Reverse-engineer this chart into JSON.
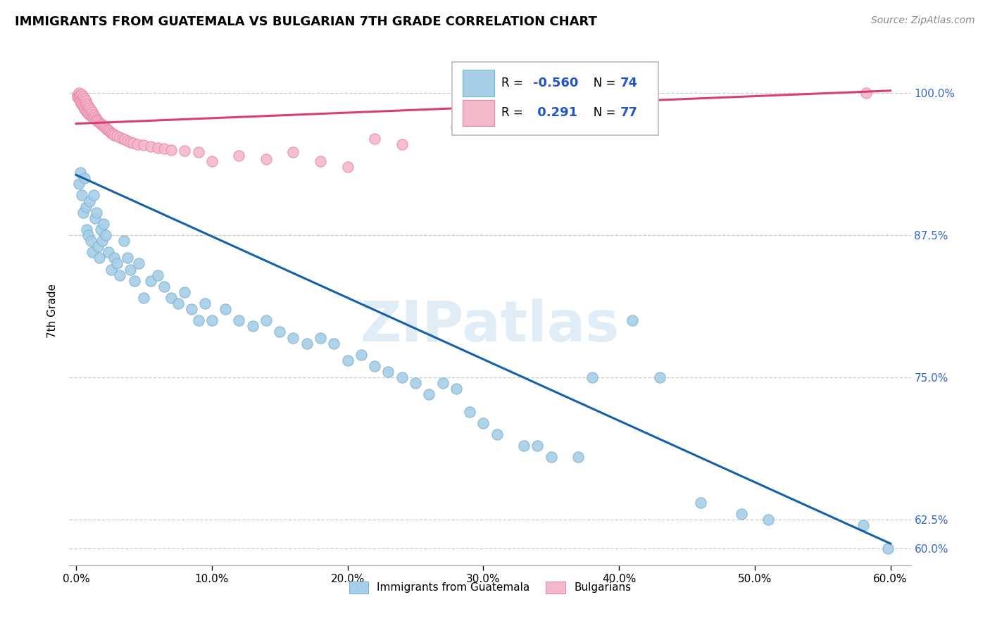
{
  "title": "IMMIGRANTS FROM GUATEMALA VS BULGARIAN 7TH GRADE CORRELATION CHART",
  "source": "Source: ZipAtlas.com",
  "ylabel": "7th Grade",
  "ytick_labels": [
    "60.0%",
    "62.5%",
    "75.0%",
    "87.5%",
    "100.0%"
  ],
  "ytick_values": [
    0.6,
    0.625,
    0.75,
    0.875,
    1.0
  ],
  "xtick_values": [
    0.0,
    0.1,
    0.2,
    0.3,
    0.4,
    0.5,
    0.6
  ],
  "blue_R": -0.56,
  "blue_N": 74,
  "pink_R": 0.291,
  "pink_N": 77,
  "blue_color": "#a8cfe8",
  "blue_edge_color": "#7ab3d4",
  "pink_color": "#f4b8cb",
  "pink_edge_color": "#e88aab",
  "blue_line_color": "#1460aa",
  "pink_line_color": "#d94070",
  "watermark": "ZIPatlas",
  "blue_line_x0": 0.0,
  "blue_line_y0": 0.928,
  "blue_line_x1": 0.6,
  "blue_line_y1": 0.604,
  "pink_line_x0": 0.0,
  "pink_line_y0": 0.973,
  "pink_line_x1": 0.6,
  "pink_line_y1": 1.002,
  "blue_scatter_x": [
    0.002,
    0.003,
    0.004,
    0.005,
    0.006,
    0.007,
    0.008,
    0.009,
    0.01,
    0.011,
    0.012,
    0.013,
    0.014,
    0.015,
    0.016,
    0.017,
    0.018,
    0.019,
    0.02,
    0.022,
    0.024,
    0.026,
    0.028,
    0.03,
    0.032,
    0.035,
    0.038,
    0.04,
    0.043,
    0.046,
    0.05,
    0.055,
    0.06,
    0.065,
    0.07,
    0.075,
    0.08,
    0.085,
    0.09,
    0.095,
    0.1,
    0.11,
    0.12,
    0.13,
    0.14,
    0.15,
    0.16,
    0.17,
    0.18,
    0.19,
    0.2,
    0.21,
    0.22,
    0.23,
    0.24,
    0.25,
    0.26,
    0.27,
    0.28,
    0.29,
    0.3,
    0.31,
    0.33,
    0.34,
    0.35,
    0.37,
    0.38,
    0.41,
    0.43,
    0.46,
    0.49,
    0.51,
    0.58,
    0.598
  ],
  "blue_scatter_y": [
    0.92,
    0.93,
    0.91,
    0.895,
    0.925,
    0.9,
    0.88,
    0.875,
    0.905,
    0.87,
    0.86,
    0.91,
    0.89,
    0.895,
    0.865,
    0.855,
    0.88,
    0.87,
    0.885,
    0.875,
    0.86,
    0.845,
    0.855,
    0.85,
    0.84,
    0.87,
    0.855,
    0.845,
    0.835,
    0.85,
    0.82,
    0.835,
    0.84,
    0.83,
    0.82,
    0.815,
    0.825,
    0.81,
    0.8,
    0.815,
    0.8,
    0.81,
    0.8,
    0.795,
    0.8,
    0.79,
    0.785,
    0.78,
    0.785,
    0.78,
    0.765,
    0.77,
    0.76,
    0.755,
    0.75,
    0.745,
    0.735,
    0.745,
    0.74,
    0.72,
    0.71,
    0.7,
    0.69,
    0.69,
    0.68,
    0.68,
    0.75,
    0.8,
    0.75,
    0.64,
    0.63,
    0.625,
    0.62,
    0.6
  ],
  "pink_scatter_x": [
    0.001,
    0.001,
    0.002,
    0.002,
    0.002,
    0.003,
    0.003,
    0.003,
    0.003,
    0.004,
    0.004,
    0.004,
    0.005,
    0.005,
    0.005,
    0.006,
    0.006,
    0.006,
    0.007,
    0.007,
    0.008,
    0.008,
    0.008,
    0.009,
    0.009,
    0.01,
    0.01,
    0.011,
    0.011,
    0.012,
    0.012,
    0.013,
    0.013,
    0.014,
    0.015,
    0.015,
    0.016,
    0.017,
    0.018,
    0.019,
    0.02,
    0.021,
    0.022,
    0.023,
    0.024,
    0.025,
    0.026,
    0.027,
    0.028,
    0.03,
    0.032,
    0.034,
    0.036,
    0.038,
    0.04,
    0.042,
    0.045,
    0.05,
    0.055,
    0.06,
    0.065,
    0.07,
    0.08,
    0.09,
    0.1,
    0.12,
    0.14,
    0.16,
    0.18,
    0.2,
    0.22,
    0.24,
    0.28,
    0.3,
    0.34,
    0.38,
    0.582
  ],
  "pink_scatter_y": [
    0.998,
    0.996,
    1.0,
    0.997,
    0.995,
    0.998,
    0.994,
    0.993,
    0.992,
    0.999,
    0.991,
    0.99,
    0.997,
    0.989,
    0.988,
    0.995,
    0.987,
    0.986,
    0.993,
    0.985,
    0.991,
    0.984,
    0.983,
    0.989,
    0.982,
    0.987,
    0.981,
    0.985,
    0.98,
    0.983,
    0.979,
    0.981,
    0.978,
    0.979,
    0.977,
    0.976,
    0.975,
    0.974,
    0.973,
    0.972,
    0.971,
    0.97,
    0.969,
    0.968,
    0.967,
    0.966,
    0.965,
    0.964,
    0.963,
    0.962,
    0.961,
    0.96,
    0.959,
    0.958,
    0.957,
    0.956,
    0.955,
    0.954,
    0.953,
    0.952,
    0.951,
    0.95,
    0.949,
    0.948,
    0.94,
    0.945,
    0.942,
    0.948,
    0.94,
    0.935,
    0.96,
    0.955,
    0.97,
    0.98,
    0.985,
    0.99,
    1.0
  ]
}
